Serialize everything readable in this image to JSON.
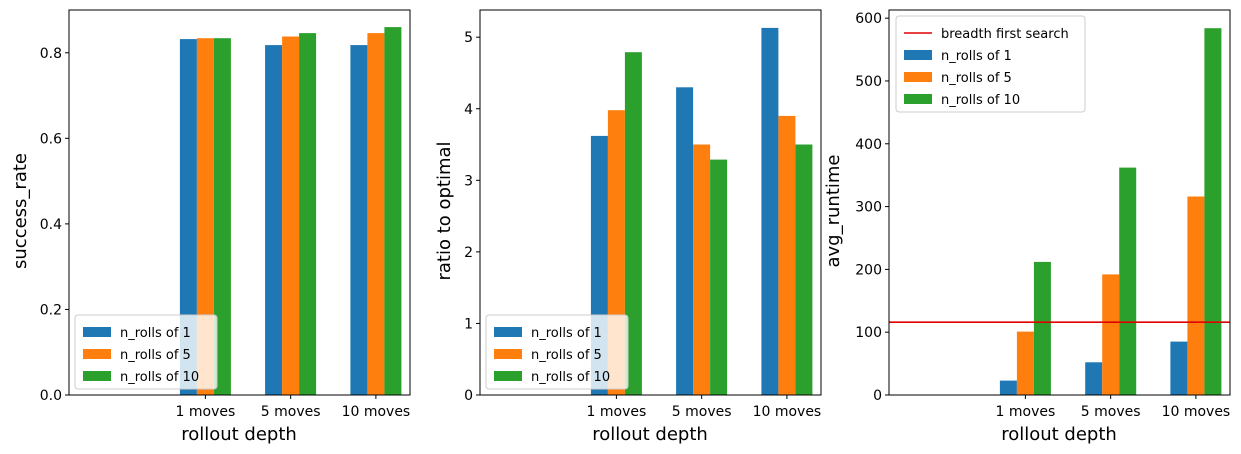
{
  "chart_data": [
    {
      "type": "bar",
      "categories": [
        "1 moves",
        "5 moves",
        "10 moves"
      ],
      "series": [
        {
          "name": "n_rolls of 1",
          "values": [
            0.832,
            0.818,
            0.818
          ],
          "color": "#1f77b4"
        },
        {
          "name": "n_rolls of 5",
          "values": [
            0.834,
            0.838,
            0.846
          ],
          "color": "#ff7f0e"
        },
        {
          "name": "n_rolls of 10",
          "values": [
            0.834,
            0.846,
            0.86
          ],
          "color": "#2ca02c"
        }
      ],
      "xlabel": "rollout depth",
      "ylabel": "success_rate",
      "ylim": [
        0,
        0.9
      ],
      "yticks": [
        0.0,
        0.2,
        0.4,
        0.6,
        0.8
      ],
      "ytick_labels": [
        "0.0",
        "0.2",
        "0.4",
        "0.6",
        "0.8"
      ],
      "legend": "lower-left"
    },
    {
      "type": "bar",
      "categories": [
        "1 moves",
        "5 moves",
        "10 moves"
      ],
      "series": [
        {
          "name": "n_rolls of 1",
          "values": [
            3.62,
            4.3,
            5.13
          ],
          "color": "#1f77b4"
        },
        {
          "name": "n_rolls of 5",
          "values": [
            3.98,
            3.5,
            3.9
          ],
          "color": "#ff7f0e"
        },
        {
          "name": "n_rolls of 10",
          "values": [
            4.79,
            3.29,
            3.5
          ],
          "color": "#2ca02c"
        }
      ],
      "xlabel": "rollout depth",
      "ylabel": "ratio to optimal",
      "ylim": [
        0,
        5.38
      ],
      "yticks": [
        0,
        1,
        2,
        3,
        4,
        5
      ],
      "ytick_labels": [
        "0",
        "1",
        "2",
        "3",
        "4",
        "5"
      ],
      "legend": "lower-left"
    },
    {
      "type": "bar",
      "categories": [
        "1 moves",
        "5 moves",
        "10 moves"
      ],
      "series": [
        {
          "name": "n_rolls of 1",
          "values": [
            23,
            52,
            85
          ],
          "color": "#1f77b4"
        },
        {
          "name": "n_rolls of 5",
          "values": [
            101,
            192,
            316
          ],
          "color": "#ff7f0e"
        },
        {
          "name": "n_rolls of 10",
          "values": [
            212,
            362,
            584
          ],
          "color": "#2ca02c"
        }
      ],
      "hline": {
        "name": "breadth first search",
        "value": 116,
        "color": "#e00000"
      },
      "xlabel": "rollout depth",
      "ylabel": "avg_runtime",
      "ylim": [
        0,
        613
      ],
      "yticks": [
        0,
        100,
        200,
        300,
        400,
        500,
        600
      ],
      "ytick_labels": [
        "0",
        "100",
        "200",
        "300",
        "400",
        "500",
        "600"
      ],
      "legend": "top-left"
    }
  ]
}
